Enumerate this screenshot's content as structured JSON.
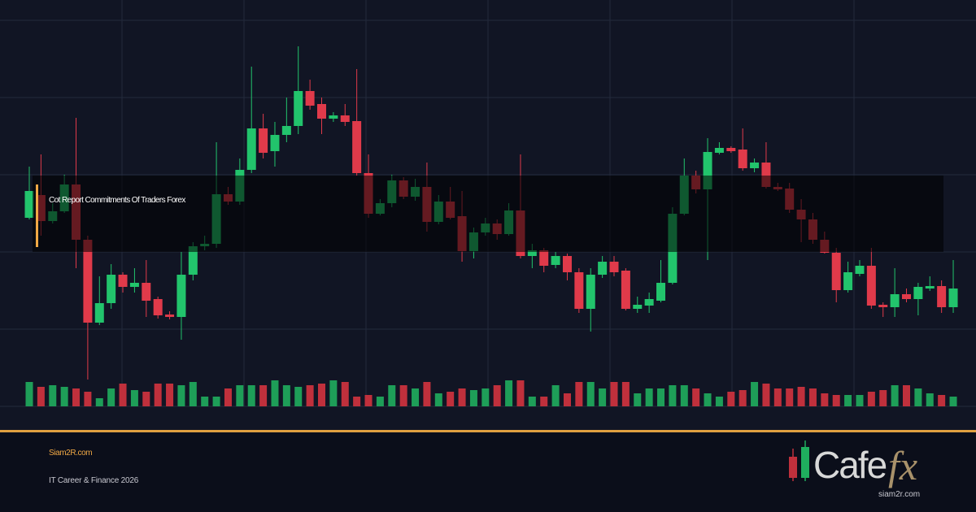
{
  "banner": {
    "title": "Cot Report Commitments Of Traders Forex",
    "site": "Siam2R.com",
    "tagline": "IT Career & Finance 2026"
  },
  "logo": {
    "name": "Cafe",
    "accent": "fx",
    "url": "siam2r.com"
  }
}
